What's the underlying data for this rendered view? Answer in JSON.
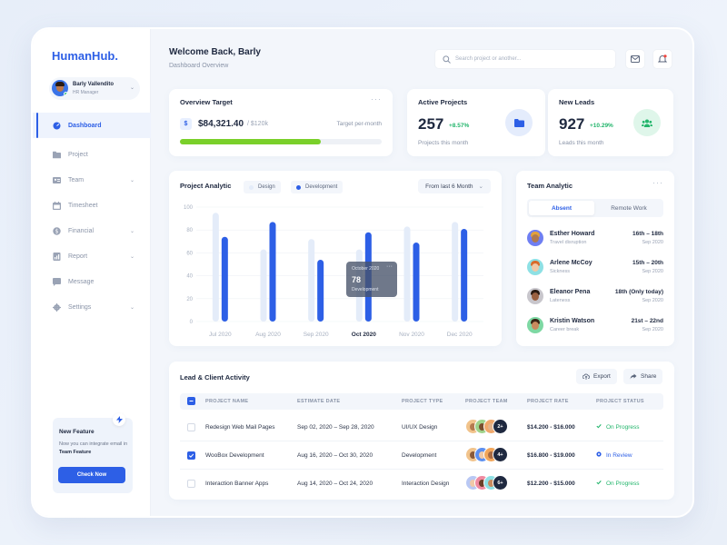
{
  "app": {
    "logo": "HumanHub."
  },
  "profile": {
    "name": "Barly Vallendito",
    "role": "HR Manager"
  },
  "nav": [
    {
      "label": "Dashboard",
      "icon": "dashboard-icon",
      "active": true,
      "chevron": false
    },
    {
      "label": "Project",
      "icon": "folder-icon",
      "active": false,
      "chevron": false
    },
    {
      "label": "Team",
      "icon": "team-icon",
      "active": false,
      "chevron": true
    },
    {
      "label": "Timesheet",
      "icon": "calendar-icon",
      "active": false,
      "chevron": false
    },
    {
      "label": "Financial",
      "icon": "dollar-icon",
      "active": false,
      "chevron": true
    },
    {
      "label": "Report",
      "icon": "report-icon",
      "active": false,
      "chevron": true
    },
    {
      "label": "Message",
      "icon": "message-icon",
      "active": false,
      "chevron": false
    },
    {
      "label": "Settings",
      "icon": "gear-icon",
      "active": false,
      "chevron": true
    }
  ],
  "feature": {
    "title": "New Feature",
    "text_prefix": "Now you can integrate email in ",
    "text_bold": "Team Feature",
    "button": "Check Now"
  },
  "header": {
    "title": "Welcome Back, Barly",
    "subtitle": "Dashboard Overview",
    "search_placeholder": "Search project or another..."
  },
  "overview": {
    "title": "Overview Target",
    "amount": "$84,321.40",
    "of": "/ $120k",
    "label": "Target per-month",
    "progress": 0.7
  },
  "active_projects": {
    "title": "Active Projects",
    "value": "257",
    "delta": "+8.57%",
    "sub": "Projects this month"
  },
  "new_leads": {
    "title": "New Leads",
    "value": "927",
    "delta": "+10.29%",
    "sub": "Leads this month"
  },
  "project_analytic": {
    "title": "Project Analytic",
    "legend_design": "Design",
    "legend_development": "Development",
    "range": "From last 6 Month",
    "tooltip": {
      "month": "October 2020",
      "value": "78",
      "label": "Development"
    }
  },
  "chart_data": {
    "type": "bar",
    "categories": [
      "Jul 2020",
      "Aug 2020",
      "Sep 2020",
      "Oct 2020",
      "Nov 2020",
      "Dec 2020"
    ],
    "highlight": "Oct 2020",
    "series": [
      {
        "name": "Design",
        "values": [
          95,
          63,
          72,
          63,
          83,
          87
        ],
        "color": "#e4ecf9"
      },
      {
        "name": "Development",
        "values": [
          74,
          87,
          54,
          78,
          69,
          81
        ],
        "color": "#2d5fe6"
      }
    ],
    "yticks": [
      0,
      20,
      40,
      60,
      80,
      100
    ],
    "ylim": [
      0,
      100
    ],
    "grid": true,
    "legend": "top-left"
  },
  "team_analytic": {
    "title": "Team Analytic",
    "tab_absent": "Absent",
    "tab_remote": "Remote Work",
    "members": [
      {
        "name": "Esther Howard",
        "reason": "Travel disruption",
        "date": "16th – 18th",
        "month": "Sep 2020",
        "bg": "#6f7ff2",
        "skin": "#b07a4f",
        "hair": "#e2a23a"
      },
      {
        "name": "Arlene McCoy",
        "reason": "Sickness",
        "date": "15th – 20th",
        "month": "Sep 2020",
        "bg": "#8ee0e4",
        "skin": "#f0c9a8",
        "hair": "#d96b2a"
      },
      {
        "name": "Eleanor Pena",
        "reason": "Lateness",
        "date": "18th (Only today)",
        "month": "Sep 2020",
        "bg": "#c8c6cc",
        "skin": "#9a6040",
        "hair": "#2a1a12"
      },
      {
        "name": "Kristin Watson",
        "reason": "Career break",
        "date": "21st – 22nd",
        "month": "Sep 2020",
        "bg": "#7ed8a3",
        "skin": "#c98a5e",
        "hair": "#3a2416"
      }
    ]
  },
  "activity": {
    "title": "Lead & Client Activity",
    "export": "Export",
    "share": "Share",
    "headers": [
      "PROJECT NAME",
      "ESTIMATE DATE",
      "PROJECT TYPE",
      "PROJECT TEAM",
      "PROJECT RATE",
      "PROJECT STATUS"
    ],
    "rows": [
      {
        "name": "Redesign Web Mail Pages",
        "date": "Sep 02, 2020 – Sep 28, 2020",
        "type": "UI/UX Design",
        "more": "2+",
        "rate": "$14.200 - $16.000",
        "status": "On Progress",
        "status_color": "#22b56b",
        "checked": false
      },
      {
        "name": "WooBox Development",
        "date": "Aug 16, 2020 – Oct 30, 2020",
        "type": "Development",
        "more": "4+",
        "rate": "$16.800 - $19.000",
        "status": "In Review",
        "status_color": "#2d5fe6",
        "checked": true
      },
      {
        "name": "Interaction Banner Apps",
        "date": "Aug 14, 2020 – Oct 24, 2020",
        "type": "Interaction Design",
        "more": "6+",
        "rate": "$12.200 - $15.000",
        "status": "On Progress",
        "status_color": "#22b56b",
        "checked": false
      }
    ]
  },
  "colors": {
    "accent": "#2d5fe6",
    "success": "#22b56b",
    "progress": "#7ad02a"
  }
}
